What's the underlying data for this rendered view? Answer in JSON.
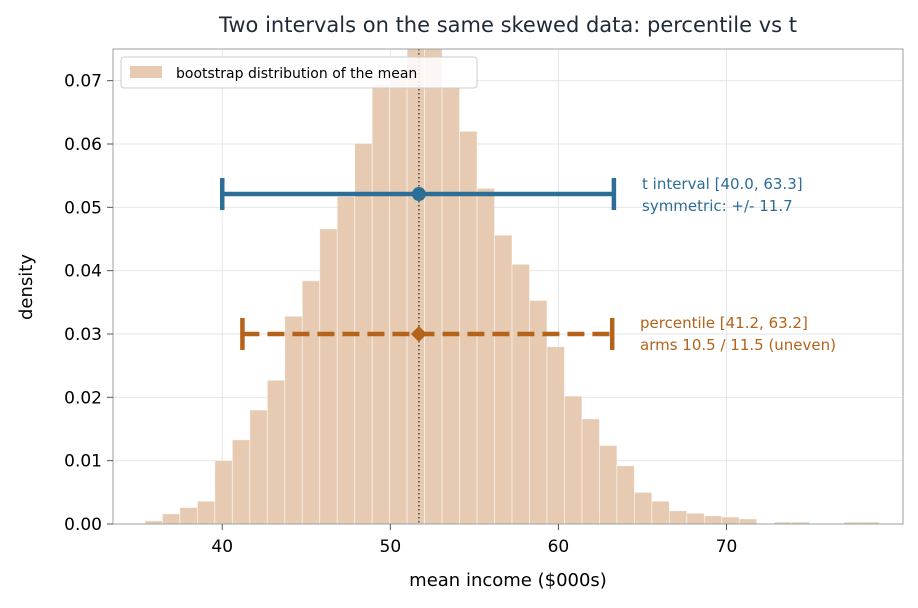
{
  "chart_data": {
    "type": "bar",
    "title": "Two intervals on the same skewed data: percentile vs t",
    "xlabel": "mean income ($000s)",
    "ylabel": "density",
    "xlim": [
      33.5,
      80.5
    ],
    "ylim": [
      0,
      0.075
    ],
    "x_ticks": [
      40,
      50,
      60,
      70
    ],
    "y_ticks": [
      0.0,
      0.01,
      0.02,
      0.03,
      0.04,
      0.05,
      0.06,
      0.07
    ],
    "x_tick_labels": [
      "40",
      "50",
      "60",
      "70"
    ],
    "y_tick_labels": [
      "0.00",
      "0.01",
      "0.02",
      "0.03",
      "0.04",
      "0.05",
      "0.06",
      "0.07"
    ],
    "grid": true,
    "legend_position": "top-left",
    "legend": [
      "bootstrap distribution of the mean"
    ],
    "histogram": {
      "name": "bootstrap distribution of the mean",
      "color": "#e6cbb2",
      "bin_edges_start": 35.4,
      "bin_width": 1.04,
      "values": [
        0.0005,
        0.0016,
        0.0026,
        0.0036,
        0.01,
        0.0133,
        0.018,
        0.0227,
        0.0328,
        0.0384,
        0.0466,
        0.0517,
        0.0601,
        0.0694,
        0.071,
        0.076,
        0.076,
        0.069,
        0.062,
        0.053,
        0.0456,
        0.041,
        0.0353,
        0.028,
        0.0202,
        0.0166,
        0.0124,
        0.0092,
        0.005,
        0.0036,
        0.0021,
        0.0017,
        0.0013,
        0.0011,
        0.0008,
        0.0,
        0.0003,
        0.0003,
        0.0,
        0.0,
        0.0003,
        0.0003
      ]
    },
    "mean": 51.7,
    "t_interval": {
      "low": 40.0,
      "high": 63.3,
      "y": 0.0521,
      "color": "#2c6e96",
      "label_line1": "t interval  [40.0, 63.3]",
      "label_line2": "symmetric: +/- 11.7"
    },
    "percentile_interval": {
      "low": 41.2,
      "high": 63.2,
      "y": 0.03,
      "color": "#b5621b",
      "label_line1": "percentile  [41.2, 63.2]",
      "label_line2": "arms 10.5 / 11.5 (uneven)"
    }
  }
}
